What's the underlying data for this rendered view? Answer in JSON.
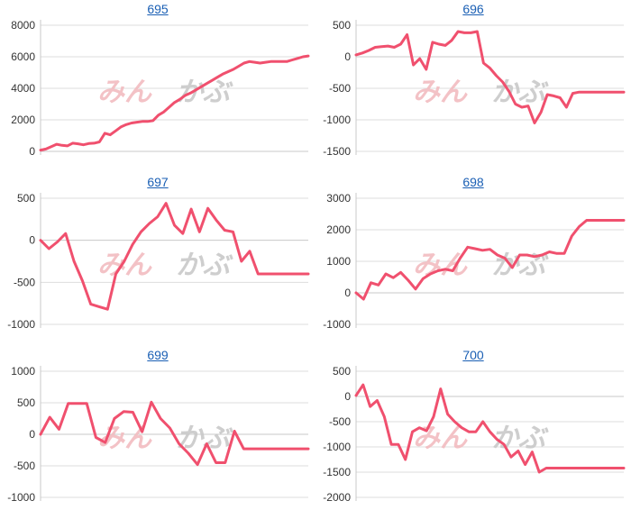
{
  "watermark": "みんかぶ",
  "colors": {
    "line": "#f0506e",
    "title": "#1a5fb4",
    "grid": "#dddddd"
  },
  "charts": [
    {
      "title": "695",
      "chart_data": {
        "type": "line",
        "title": "695",
        "xlabel": "",
        "ylabel": "",
        "ylim": [
          0,
          8000
        ],
        "yticks": [
          0,
          2000,
          4000,
          6000,
          8000
        ],
        "grid": true,
        "x": [
          0,
          1,
          2,
          3,
          4,
          5,
          6,
          7,
          8,
          9,
          10,
          11,
          12,
          13,
          14,
          15,
          16,
          17,
          18,
          19,
          20,
          21,
          22,
          23,
          24,
          25,
          26,
          27,
          28,
          29,
          30,
          31,
          32,
          33,
          34,
          35,
          36,
          37,
          38,
          39,
          40,
          41,
          42,
          43,
          44,
          45,
          46,
          47,
          48,
          49,
          50
        ],
        "series": [
          {
            "values": [
              80,
              150,
              300,
              450,
              380,
              350,
              520,
              480,
              420,
              500,
              520,
              600,
              1150,
              1050,
              1300,
              1550,
              1700,
              1800,
              1850,
              1900,
              1900,
              1950,
              2300,
              2500,
              2800,
              3100,
              3300,
              3550,
              3700,
              3900,
              4100,
              4300,
              4500,
              4700,
              4900,
              5050,
              5200,
              5400,
              5600,
              5700,
              5650,
              5600,
              5650,
              5700,
              5700,
              5700,
              5700,
              5800,
              5900,
              6000,
              6050
            ]
          }
        ]
      }
    },
    {
      "title": "696",
      "chart_data": {
        "type": "line",
        "title": "696",
        "xlabel": "",
        "ylabel": "",
        "ylim": [
          -1500,
          500
        ],
        "yticks": [
          -1500,
          -1000,
          -500,
          0,
          500
        ],
        "grid": true,
        "x": [
          0,
          1,
          2,
          3,
          4,
          5,
          6,
          7,
          8,
          9,
          10,
          11,
          12,
          13,
          14,
          15,
          16,
          17,
          18,
          19,
          20,
          21,
          22,
          23,
          24,
          25,
          26,
          27,
          28,
          29,
          30,
          31,
          32,
          33,
          34,
          35,
          36,
          37,
          38,
          39,
          40,
          41,
          42
        ],
        "series": [
          {
            "values": [
              30,
              60,
              100,
              150,
              160,
              170,
              150,
              200,
              350,
              -130,
              -30,
              -200,
              230,
              200,
              180,
              260,
              400,
              380,
              380,
              400,
              -100,
              -180,
              -300,
              -400,
              -550,
              -750,
              -800,
              -780,
              -1050,
              -880,
              -600,
              -620,
              -650,
              -800,
              -580,
              -560,
              -560,
              -560,
              -560,
              -560,
              -560,
              -560,
              -560
            ]
          }
        ]
      }
    },
    {
      "title": "697",
      "chart_data": {
        "type": "line",
        "title": "697",
        "xlabel": "",
        "ylabel": "",
        "ylim": [
          -1000,
          500
        ],
        "yticks": [
          -1000,
          -500,
          0,
          500
        ],
        "grid": true,
        "x": [
          0,
          1,
          2,
          3,
          4,
          5,
          6,
          7,
          8,
          9,
          10,
          11,
          12,
          13,
          14,
          15,
          16,
          17,
          18,
          19,
          20,
          21,
          22,
          23,
          24,
          25,
          26,
          27,
          28,
          29,
          30,
          31,
          32
        ],
        "series": [
          {
            "values": [
              0,
              -100,
              -20,
              80,
              -250,
              -480,
              -760,
              -790,
              -820,
              -400,
              -250,
              -50,
              100,
              200,
              280,
              440,
              180,
              80,
              370,
              100,
              380,
              240,
              120,
              100,
              -250,
              -130,
              -400,
              -400,
              -400,
              -400,
              -400,
              -400,
              -400
            ]
          }
        ]
      }
    },
    {
      "title": "698",
      "chart_data": {
        "type": "line",
        "title": "698",
        "xlabel": "",
        "ylabel": "",
        "ylim": [
          -1000,
          3000
        ],
        "yticks": [
          -1000,
          0,
          1000,
          2000,
          3000
        ],
        "grid": true,
        "x": [
          0,
          1,
          2,
          3,
          4,
          5,
          6,
          7,
          8,
          9,
          10,
          11,
          12,
          13,
          14,
          15,
          16,
          17,
          18,
          19,
          20,
          21,
          22,
          23,
          24,
          25,
          26,
          27,
          28,
          29,
          30,
          31,
          32,
          33,
          34,
          35,
          36
        ],
        "series": [
          {
            "values": [
              0,
              -200,
              320,
              250,
              600,
              480,
              650,
              400,
              120,
              450,
              600,
              700,
              750,
              700,
              1100,
              1450,
              1400,
              1350,
              1380,
              1200,
              1100,
              800,
              1200,
              1200,
              1150,
              1200,
              1300,
              1250,
              1250,
              1800,
              2100,
              2300,
              2300,
              2300,
              2300,
              2300,
              2300
            ]
          }
        ]
      }
    },
    {
      "title": "699",
      "chart_data": {
        "type": "line",
        "title": "699",
        "xlabel": "",
        "ylabel": "",
        "ylim": [
          -1000,
          1000
        ],
        "yticks": [
          -1000,
          -500,
          0,
          500,
          1000
        ],
        "grid": true,
        "x": [
          0,
          1,
          2,
          3,
          4,
          5,
          6,
          7,
          8,
          9,
          10,
          11,
          12,
          13,
          14,
          15,
          16,
          17,
          18,
          19,
          20,
          21,
          22,
          23,
          24,
          25,
          26,
          27,
          28,
          29
        ],
        "series": [
          {
            "values": [
              0,
              270,
              80,
              490,
              490,
              490,
              -50,
              -130,
              250,
              360,
              350,
              40,
              510,
              250,
              100,
              -150,
              -300,
              -480,
              -150,
              -450,
              -450,
              50,
              -230,
              -230,
              -230,
              -230,
              -230,
              -230,
              -230,
              -230
            ]
          }
        ]
      }
    },
    {
      "title": "700",
      "chart_data": {
        "type": "line",
        "title": "700",
        "xlabel": "",
        "ylabel": "",
        "ylim": [
          -2000,
          500
        ],
        "yticks": [
          -2000,
          -1500,
          -1000,
          -500,
          0,
          500
        ],
        "grid": true,
        "x": [
          0,
          1,
          2,
          3,
          4,
          5,
          6,
          7,
          8,
          9,
          10,
          11,
          12,
          13,
          14,
          15,
          16,
          17,
          18,
          19,
          20,
          21,
          22,
          23,
          24,
          25,
          26,
          27,
          28,
          29,
          30,
          31,
          32,
          33,
          34,
          35,
          36,
          37,
          38
        ],
        "series": [
          {
            "values": [
              20,
              230,
              -200,
              -80,
              -400,
              -950,
              -950,
              -1250,
              -700,
              -620,
              -680,
              -400,
              150,
              -350,
              -500,
              -620,
              -700,
              -700,
              -500,
              -700,
              -850,
              -950,
              -1200,
              -1080,
              -1350,
              -1100,
              -1500,
              -1420,
              -1420,
              -1420,
              -1420,
              -1420,
              -1420,
              -1420,
              -1420,
              -1420,
              -1420,
              -1420,
              -1420
            ]
          }
        ]
      }
    }
  ]
}
